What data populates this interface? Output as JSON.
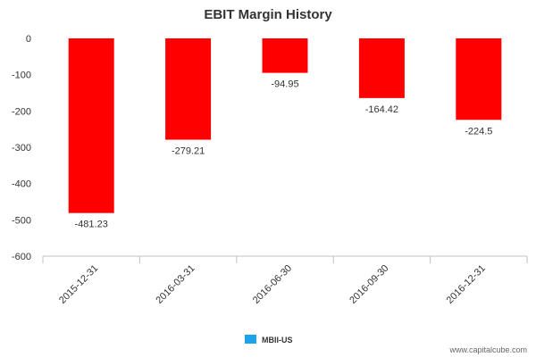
{
  "chart_data": {
    "type": "bar",
    "title": "EBIT Margin History",
    "categories": [
      "2015-12-31",
      "2016-03-31",
      "2016-06-30",
      "2016-09-30",
      "2016-12-31"
    ],
    "series": [
      {
        "name": "MBII-US",
        "values": [
          -481.23,
          -279.21,
          -94.95,
          -164.42,
          -224.5
        ],
        "color": "#ff0000"
      }
    ],
    "data_labels": [
      "-481.23",
      "-279.21",
      "-94.95",
      "-164.42",
      "-224.5"
    ],
    "ylim": [
      -600,
      0
    ],
    "yticks": [
      0,
      -100,
      -200,
      -300,
      -400,
      -500,
      -600
    ],
    "ytick_labels": [
      "0",
      "-100",
      "-200",
      "-300",
      "-400",
      "-500",
      "-600"
    ],
    "xlabel": "",
    "ylabel": "",
    "legend": {
      "position": "bottom",
      "entries": [
        "MBII-US"
      ],
      "swatch_color": "#1aa3e8"
    },
    "grid": false
  },
  "watermark": "www.capitalcube.com"
}
